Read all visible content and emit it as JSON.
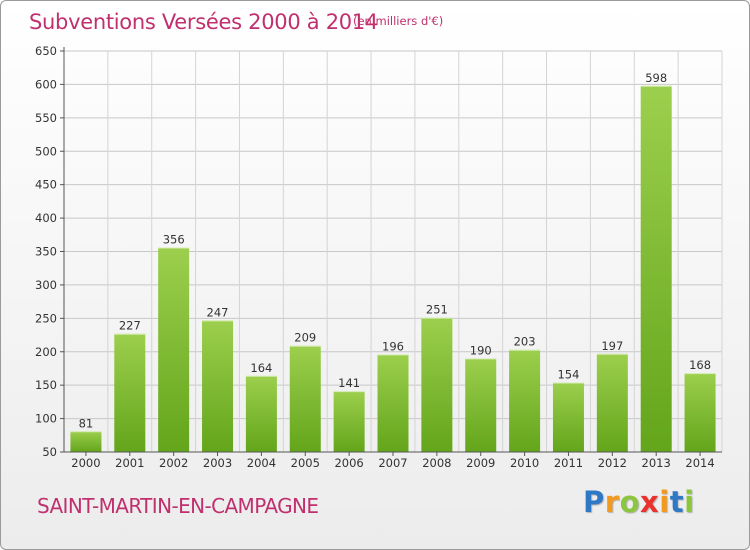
{
  "header": {
    "title": "Subventions Versées 2000 à 2014",
    "units": "(en milliers d'€)"
  },
  "footer": {
    "commune": "SAINT-MARTIN-EN-CAMPAGNE",
    "logo_letters": [
      {
        "ch": "P",
        "color": "#2e78c6"
      },
      {
        "ch": "r",
        "color": "#f39a1c"
      },
      {
        "ch": "o",
        "color": "#8cc63f"
      },
      {
        "ch": "x",
        "color": "#e8322b"
      },
      {
        "ch": "i",
        "color": "#f39a1c"
      },
      {
        "ch": "t",
        "color": "#2e78c6"
      },
      {
        "ch": "i",
        "color": "#8cc63f"
      }
    ]
  },
  "colors": {
    "bar_top": "#9ccf4d",
    "bar_bottom": "#63a51b",
    "title": "#c0306e"
  },
  "chart_data": {
    "type": "bar",
    "title": "Subventions Versées 2000 à 2014",
    "subtitle": "(en milliers d'€)",
    "xlabel": "",
    "ylabel": "",
    "categories": [
      "2000",
      "2001",
      "2002",
      "2003",
      "2004",
      "2005",
      "2006",
      "2007",
      "2008",
      "2009",
      "2010",
      "2011",
      "2012",
      "2013",
      "2014"
    ],
    "values": [
      81,
      227,
      356,
      247,
      164,
      209,
      141,
      196,
      251,
      190,
      203,
      154,
      197,
      598,
      168
    ],
    "ylim": [
      50,
      650
    ],
    "yticks": [
      50,
      100,
      150,
      200,
      250,
      300,
      350,
      400,
      450,
      500,
      550,
      600,
      650
    ],
    "grid": true,
    "legend": "none"
  }
}
